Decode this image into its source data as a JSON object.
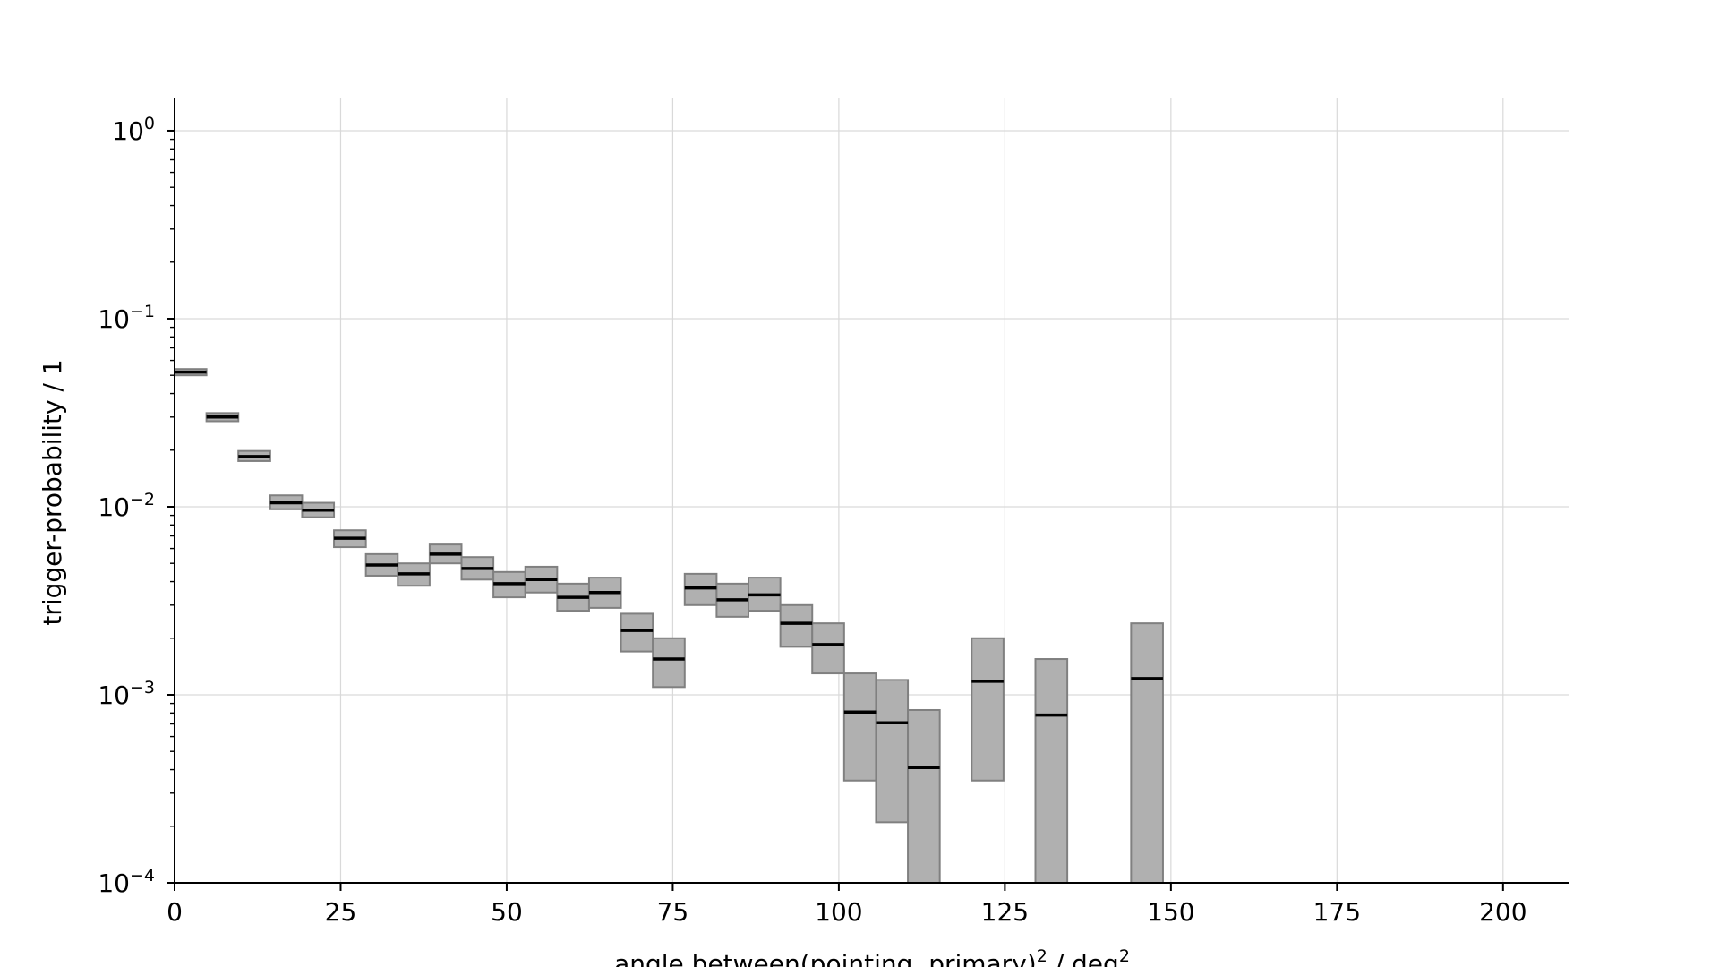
{
  "chart_data": {
    "type": "bar",
    "xlabel": "angle between(pointing, primary)",
    "xlabel_unit": "/ deg",
    "xlabel_exp": "2",
    "ylabel": "trigger-probability / 1",
    "xlim": [
      0,
      210
    ],
    "ylim": [
      0.0001,
      1.5
    ],
    "yscale": "log",
    "grid": true,
    "x_ticks": [
      "0",
      "25",
      "50",
      "75",
      "100",
      "125",
      "150",
      "175",
      "200"
    ],
    "y_ticks": [
      {
        "base": "10",
        "exp": "0"
      },
      {
        "base": "10",
        "exp": "−1"
      },
      {
        "base": "10",
        "exp": "−2"
      },
      {
        "base": "10",
        "exp": "−3"
      },
      {
        "base": "10",
        "exp": "−4"
      }
    ],
    "series": [
      {
        "values": [
          {
            "x0": 0.0,
            "x1": 4.8,
            "y": 0.052,
            "lo": 0.05,
            "hi": 0.054
          },
          {
            "x0": 4.8,
            "x1": 9.6,
            "y": 0.03,
            "lo": 0.0285,
            "hi": 0.0315
          },
          {
            "x0": 9.6,
            "x1": 14.4,
            "y": 0.0185,
            "lo": 0.0175,
            "hi": 0.0198
          },
          {
            "x0": 14.4,
            "x1": 19.2,
            "y": 0.0105,
            "lo": 0.0097,
            "hi": 0.0115
          },
          {
            "x0": 19.2,
            "x1": 24.0,
            "y": 0.0096,
            "lo": 0.0088,
            "hi": 0.0105
          },
          {
            "x0": 24.0,
            "x1": 28.8,
            "y": 0.0068,
            "lo": 0.0061,
            "hi": 0.0075
          },
          {
            "x0": 28.8,
            "x1": 33.6,
            "y": 0.0049,
            "lo": 0.0043,
            "hi": 0.0056
          },
          {
            "x0": 33.6,
            "x1": 38.4,
            "y": 0.0044,
            "lo": 0.0038,
            "hi": 0.005
          },
          {
            "x0": 38.4,
            "x1": 43.2,
            "y": 0.0056,
            "lo": 0.005,
            "hi": 0.0063
          },
          {
            "x0": 43.2,
            "x1": 48.0,
            "y": 0.0047,
            "lo": 0.0041,
            "hi": 0.0054
          },
          {
            "x0": 48.0,
            "x1": 52.8,
            "y": 0.0039,
            "lo": 0.0033,
            "hi": 0.0045
          },
          {
            "x0": 52.8,
            "x1": 57.6,
            "y": 0.0041,
            "lo": 0.0035,
            "hi": 0.0048
          },
          {
            "x0": 57.6,
            "x1": 62.4,
            "y": 0.0033,
            "lo": 0.0028,
            "hi": 0.0039
          },
          {
            "x0": 62.4,
            "x1": 67.2,
            "y": 0.0035,
            "lo": 0.0029,
            "hi": 0.0042
          },
          {
            "x0": 67.2,
            "x1": 72.0,
            "y": 0.0022,
            "lo": 0.0017,
            "hi": 0.0027
          },
          {
            "x0": 72.0,
            "x1": 76.8,
            "y": 0.00155,
            "lo": 0.0011,
            "hi": 0.002
          },
          {
            "x0": 76.8,
            "x1": 81.6,
            "y": 0.0037,
            "lo": 0.003,
            "hi": 0.0044
          },
          {
            "x0": 81.6,
            "x1": 86.4,
            "y": 0.0032,
            "lo": 0.0026,
            "hi": 0.0039
          },
          {
            "x0": 86.4,
            "x1": 91.2,
            "y": 0.0034,
            "lo": 0.0028,
            "hi": 0.0042
          },
          {
            "x0": 91.2,
            "x1": 96.0,
            "y": 0.0024,
            "lo": 0.0018,
            "hi": 0.003
          },
          {
            "x0": 96.0,
            "x1": 100.8,
            "y": 0.00185,
            "lo": 0.0013,
            "hi": 0.0024
          },
          {
            "x0": 100.8,
            "x1": 105.6,
            "y": 0.00081,
            "lo": 0.00035,
            "hi": 0.0013
          },
          {
            "x0": 105.6,
            "x1": 110.4,
            "y": 0.00071,
            "lo": 0.00021,
            "hi": 0.0012
          },
          {
            "x0": 110.4,
            "x1": 115.2,
            "y": 0.00041,
            "lo": 0.0001,
            "hi": 0.00083
          },
          {
            "x0": 120.0,
            "x1": 124.8,
            "y": 0.00118,
            "lo": 0.00035,
            "hi": 0.002
          },
          {
            "x0": 129.6,
            "x1": 134.4,
            "y": 0.00078,
            "lo": 0.0001,
            "hi": 0.00155
          },
          {
            "x0": 144.0,
            "x1": 148.8,
            "y": 0.00122,
            "lo": 0.0001,
            "hi": 0.0024
          }
        ]
      }
    ],
    "colors": {
      "band_fill": "#b0b0b0",
      "band_stroke": "#808080",
      "line": "#000000",
      "grid": "#d9d9d9",
      "axis": "#000000"
    }
  }
}
